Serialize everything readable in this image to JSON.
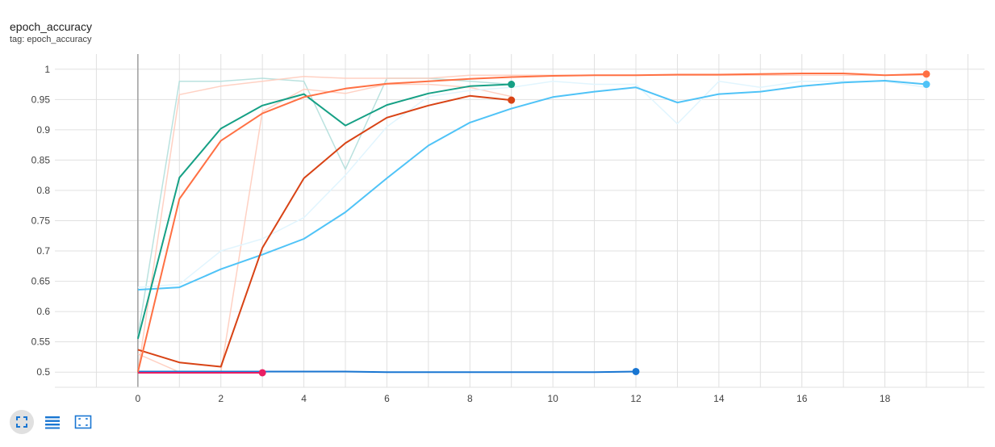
{
  "card": {
    "title": "epoch_accuracy",
    "tag": "tag: epoch_accuracy"
  },
  "toolbar": {
    "buttons": [
      {
        "icon": "fullscreen-icon"
      },
      {
        "icon": "toggle-log-scale-icon"
      },
      {
        "icon": "fit-domain-icon"
      }
    ]
  },
  "chart_data": {
    "type": "line",
    "title": "epoch_accuracy",
    "xlabel": "",
    "ylabel": "",
    "xlim": [
      -2,
      20.4
    ],
    "ylim": [
      0.475,
      1.025
    ],
    "xticks": [
      0,
      2,
      4,
      6,
      8,
      10,
      12,
      14,
      16,
      18
    ],
    "yticks": [
      0.5,
      0.55,
      0.6,
      0.65,
      0.7,
      0.75,
      0.8,
      0.85,
      0.9,
      0.95,
      1
    ],
    "grid": true,
    "legend": "none",
    "series": [
      {
        "color": "#b2dfdb",
        "opacity": 0.9,
        "width": 1.5,
        "marker": false,
        "x": [
          0,
          1,
          2,
          3,
          4,
          5,
          6,
          7,
          8,
          9
        ],
        "y": [
          0.56,
          0.98,
          0.98,
          0.985,
          0.98,
          0.835,
          0.985,
          0.985,
          0.98,
          0.975
        ]
      },
      {
        "color": "#ffccbc",
        "opacity": 0.9,
        "width": 1.5,
        "marker": false,
        "x": [
          0,
          1,
          2,
          3,
          4,
          5,
          6,
          7,
          8,
          9,
          10,
          11,
          12,
          13,
          14,
          15,
          16,
          17,
          18,
          19
        ],
        "y": [
          0.5,
          0.958,
          0.972,
          0.98,
          0.988,
          0.985,
          0.985,
          0.985,
          0.99,
          0.99,
          0.99,
          0.99,
          0.99,
          0.99,
          0.99,
          0.99,
          0.99,
          0.99,
          0.99,
          0.99
        ]
      },
      {
        "color": "#ffccbc",
        "opacity": 0.9,
        "width": 1.5,
        "marker": false,
        "x": [
          0,
          1,
          2,
          3,
          4,
          5,
          6,
          7,
          8,
          9
        ],
        "y": [
          0.53,
          0.5,
          0.5,
          0.93,
          0.967,
          0.96,
          0.975,
          0.975,
          0.97,
          0.955
        ]
      },
      {
        "color": "#e1f5fe",
        "opacity": 1,
        "width": 1.5,
        "marker": false,
        "x": [
          0,
          1,
          2,
          3,
          4,
          5,
          6,
          7,
          8,
          9,
          10,
          11,
          12,
          13,
          14,
          15,
          16,
          17,
          18,
          19
        ],
        "y": [
          0.64,
          0.645,
          0.7,
          0.72,
          0.755,
          0.825,
          0.905,
          0.955,
          0.965,
          0.97,
          0.98,
          0.975,
          0.975,
          0.91,
          0.98,
          0.97,
          0.98,
          0.98,
          0.98,
          0.97
        ]
      },
      {
        "color": "#1976d2",
        "opacity": 1,
        "width": 2,
        "marker": true,
        "x": [
          0,
          1,
          2,
          3,
          4,
          5,
          6,
          7,
          8,
          9,
          10,
          11,
          12
        ],
        "y": [
          0.501,
          0.501,
          0.501,
          0.501,
          0.501,
          0.501,
          0.5,
          0.5,
          0.5,
          0.5,
          0.5,
          0.5,
          0.501
        ]
      },
      {
        "color": "#e91e63",
        "opacity": 1,
        "width": 2,
        "marker": true,
        "x": [
          0,
          1,
          2,
          3
        ],
        "y": [
          0.499,
          0.499,
          0.499,
          0.499
        ]
      },
      {
        "color": "#4fc3f7",
        "opacity": 1,
        "width": 2,
        "marker": true,
        "x": [
          0,
          1,
          2,
          3,
          4,
          5,
          6,
          7,
          8,
          9,
          10,
          11,
          12,
          13,
          14,
          15,
          16,
          17,
          18,
          19
        ],
        "y": [
          0.636,
          0.64,
          0.67,
          0.694,
          0.72,
          0.764,
          0.82,
          0.874,
          0.912,
          0.935,
          0.954,
          0.963,
          0.97,
          0.945,
          0.959,
          0.963,
          0.972,
          0.978,
          0.981,
          0.975
        ]
      },
      {
        "color": "#d84315",
        "opacity": 1,
        "width": 2,
        "marker": true,
        "x": [
          0,
          1,
          2,
          3,
          4,
          5,
          6,
          7,
          8,
          9
        ],
        "y": [
          0.537,
          0.516,
          0.509,
          0.705,
          0.82,
          0.878,
          0.92,
          0.94,
          0.956,
          0.949
        ]
      },
      {
        "color": "#16a085",
        "opacity": 1,
        "width": 2,
        "marker": true,
        "x": [
          0,
          1,
          2,
          3,
          4,
          5,
          6,
          7,
          8,
          9
        ],
        "y": [
          0.555,
          0.821,
          0.902,
          0.94,
          0.959,
          0.907,
          0.941,
          0.96,
          0.972,
          0.975
        ]
      },
      {
        "color": "#ff7043",
        "opacity": 1,
        "width": 2,
        "marker": true,
        "x": [
          0,
          1,
          2,
          3,
          4,
          5,
          6,
          7,
          8,
          9,
          10,
          11,
          12,
          13,
          14,
          15,
          16,
          17,
          18,
          19
        ],
        "y": [
          0.5,
          0.786,
          0.882,
          0.927,
          0.954,
          0.968,
          0.976,
          0.98,
          0.984,
          0.987,
          0.989,
          0.99,
          0.99,
          0.991,
          0.991,
          0.992,
          0.993,
          0.993,
          0.99,
          0.992
        ]
      }
    ]
  }
}
